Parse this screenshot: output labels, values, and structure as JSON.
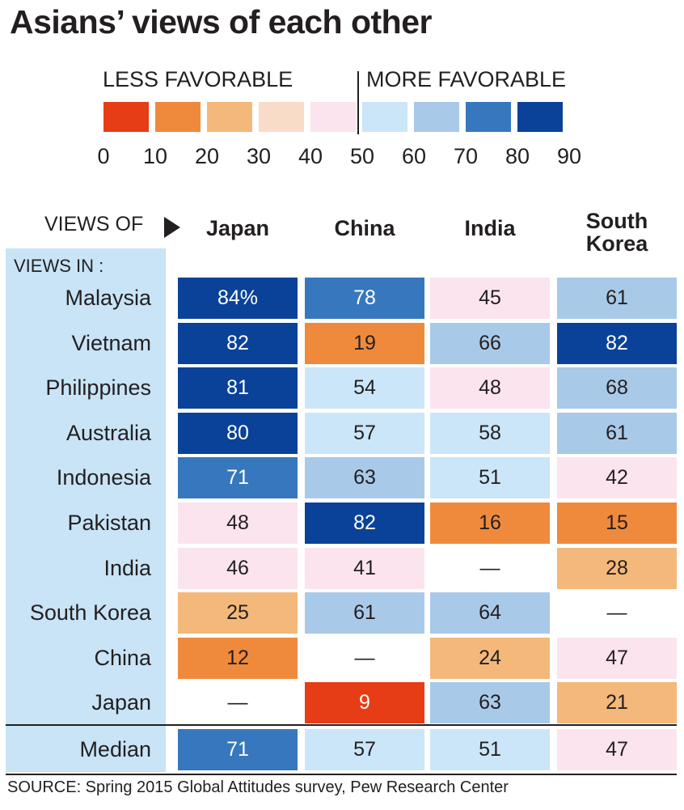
{
  "title": "Asians’ views of each other",
  "legend": {
    "less_label": "LESS FAVORABLE",
    "more_label": "MORE FAVORABLE",
    "colors": [
      "#e63d16",
      "#ef8a3c",
      "#f4b87a",
      "#f9dcc8",
      "#fbe4ee",
      "#cbe6f8",
      "#a9c9e8",
      "#3777bd",
      "#0a4299"
    ],
    "ticks": [
      "0",
      "10",
      "20",
      "30",
      "40",
      "50",
      "60",
      "70",
      "80",
      "90"
    ]
  },
  "table": {
    "views_of_label": "VIEWS OF",
    "views_in_label": "VIEWS IN :",
    "columns": [
      "Japan",
      "China",
      "India",
      "South\nKorea"
    ],
    "rows": [
      {
        "label": "Malaysia",
        "values": [
          "84%",
          "78",
          "45",
          "61"
        ]
      },
      {
        "label": "Vietnam",
        "values": [
          "82",
          "19",
          "66",
          "82"
        ]
      },
      {
        "label": "Philippines",
        "values": [
          "81",
          "54",
          "48",
          "68"
        ]
      },
      {
        "label": "Australia",
        "values": [
          "80",
          "57",
          "58",
          "61"
        ]
      },
      {
        "label": "Indonesia",
        "values": [
          "71",
          "63",
          "51",
          "42"
        ]
      },
      {
        "label": "Pakistan",
        "values": [
          "48",
          "82",
          "16",
          "15"
        ]
      },
      {
        "label": "India",
        "values": [
          "46",
          "41",
          "—",
          "28"
        ]
      },
      {
        "label": "South Korea",
        "values": [
          "25",
          "61",
          "64",
          "—"
        ]
      },
      {
        "label": "China",
        "values": [
          "12",
          "—",
          "24",
          "47"
        ]
      },
      {
        "label": "Japan",
        "values": [
          "—",
          "9",
          "63",
          "21"
        ]
      }
    ],
    "median": {
      "label": "Median",
      "values": [
        "71",
        "57",
        "51",
        "47"
      ]
    }
  },
  "chart_data": {
    "type": "heatmap",
    "title": "Asians’ views of each other",
    "x_label": "VIEWS OF",
    "y_label": "VIEWS IN :",
    "x_categories": [
      "Japan",
      "China",
      "India",
      "South Korea"
    ],
    "y_categories": [
      "Malaysia",
      "Vietnam",
      "Philippines",
      "Australia",
      "Indonesia",
      "Pakistan",
      "India",
      "South Korea",
      "China",
      "Japan",
      "Median"
    ],
    "unit": "% favorable",
    "values": [
      [
        84,
        78,
        45,
        61
      ],
      [
        82,
        19,
        66,
        82
      ],
      [
        81,
        54,
        48,
        68
      ],
      [
        80,
        57,
        58,
        61
      ],
      [
        71,
        63,
        51,
        42
      ],
      [
        48,
        82,
        16,
        15
      ],
      [
        46,
        41,
        null,
        28
      ],
      [
        25,
        61,
        64,
        null
      ],
      [
        12,
        null,
        24,
        47
      ],
      [
        null,
        9,
        63,
        21
      ],
      [
        71,
        57,
        51,
        47
      ]
    ],
    "color_scale": {
      "bins": [
        0,
        10,
        20,
        30,
        40,
        50,
        60,
        70,
        80,
        90
      ],
      "colors": [
        "#e63d16",
        "#ef8a3c",
        "#f4b87a",
        "#f9dcc8",
        "#fbe4ee",
        "#cbe6f8",
        "#a9c9e8",
        "#3777bd",
        "#0a4299"
      ],
      "low_label": "LESS FAVORABLE",
      "high_label": "MORE FAVORABLE"
    }
  },
  "source": "SOURCE: Spring 2015 Global Attitudes survey, Pew Research Center"
}
